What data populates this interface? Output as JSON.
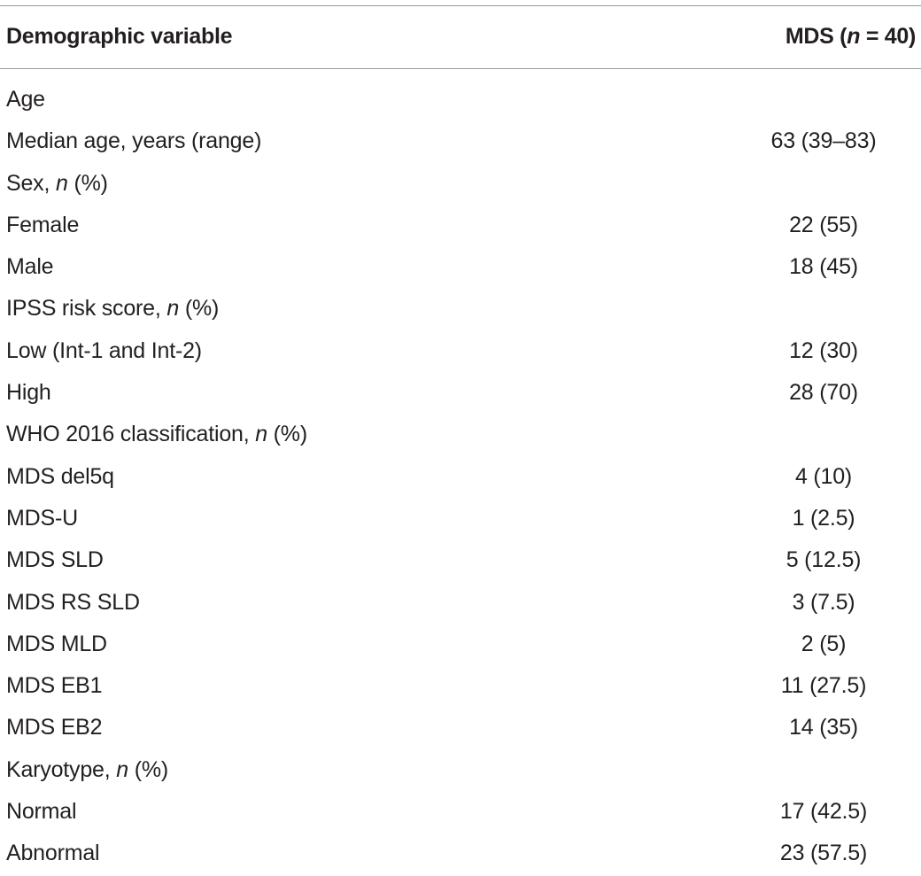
{
  "table": {
    "header": {
      "col1": "Demographic variable",
      "col2_prefix": "MDS (",
      "col2_n": "n",
      "col2_suffix": " = 40)"
    },
    "rows": [
      {
        "label": "Age",
        "value": ""
      },
      {
        "label": "Median age, years (range)",
        "value": "63 (39–83)"
      },
      {
        "label_prefix": "Sex, ",
        "label_italic": "n",
        "label_suffix": " (%)",
        "value": ""
      },
      {
        "label": "Female",
        "value": "22 (55)"
      },
      {
        "label": "Male",
        "value": "18 (45)"
      },
      {
        "label_prefix": "IPSS risk score, ",
        "label_italic": "n",
        "label_suffix": " (%)",
        "value": ""
      },
      {
        "label": "Low (Int-1 and Int-2)",
        "value": "12 (30)"
      },
      {
        "label": "High",
        "value": "28 (70)"
      },
      {
        "label_prefix": "WHO 2016 classification, ",
        "label_italic": "n",
        "label_suffix": " (%)",
        "value": ""
      },
      {
        "label": "MDS del5q",
        "value": "4 (10)"
      },
      {
        "label": "MDS-U",
        "value": "1 (2.5)"
      },
      {
        "label": "MDS SLD",
        "value": "5 (12.5)"
      },
      {
        "label": "MDS RS SLD",
        "value": "3 (7.5)"
      },
      {
        "label": "MDS MLD",
        "value": "2 (5)"
      },
      {
        "label": "MDS EB1",
        "value": "11 (27.5)"
      },
      {
        "label": "MDS EB2",
        "value": "14 (35)"
      },
      {
        "label_prefix": "Karyotype, ",
        "label_italic": "n",
        "label_suffix": " (%)",
        "value": ""
      },
      {
        "label": "Normal",
        "value": "17 (42.5)"
      },
      {
        "label": "Abnormal",
        "value": "23 (57.5)"
      }
    ]
  }
}
